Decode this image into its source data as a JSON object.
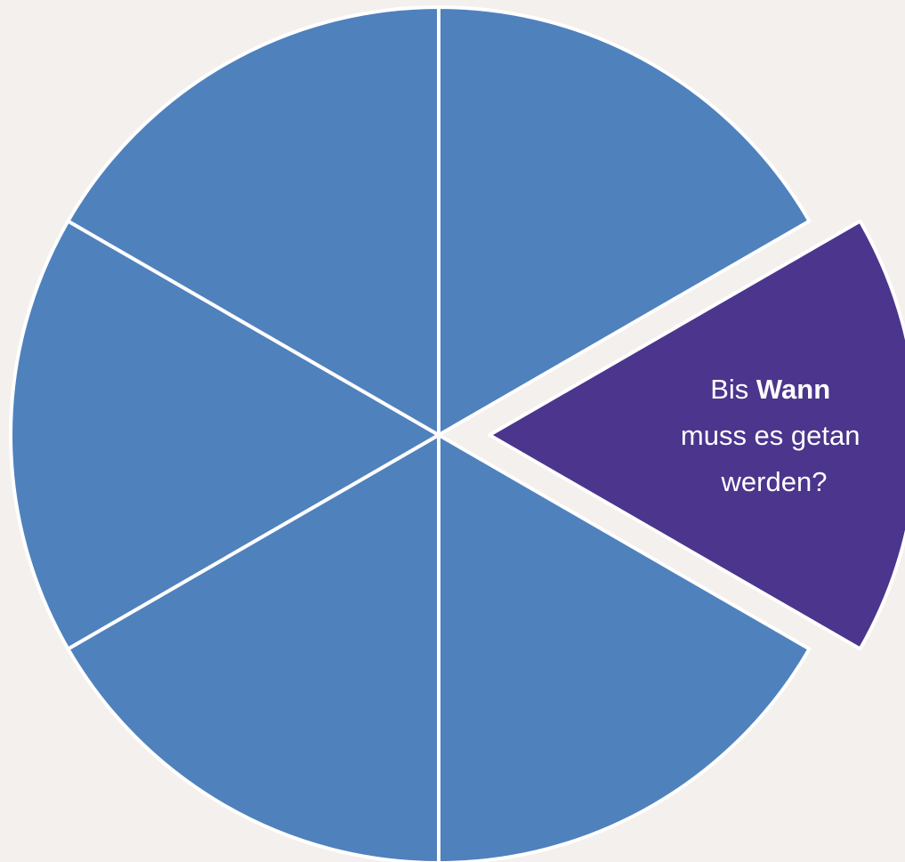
{
  "diagram": {
    "type": "exploded-pie",
    "segment_count": 6,
    "highlighted_segment": 1,
    "colors": {
      "background": "#f3f0ed",
      "segment_default": "#4f81bd",
      "segment_highlight": "#4b358d",
      "segment_border": "#ffffff",
      "label_text": "#ffffff"
    },
    "highlight_label": {
      "line1_prefix": "Bis ",
      "line1_bold": "Wann",
      "line2": "muss es getan",
      "line3": "werden?"
    }
  }
}
